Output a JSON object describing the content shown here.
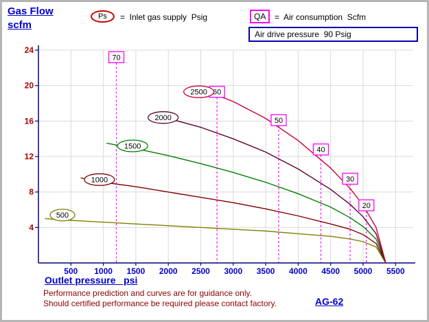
{
  "title": {
    "line1": "Gas Flow",
    "line2": "scfm"
  },
  "legend": {
    "ps_symbol": "Ps",
    "ps_text": "=  Inlet gas supply  Psig",
    "qa_symbol": "QA",
    "qa_text": "=  Air consumption  Scfm",
    "air_drive": "Air drive pressure  90 Psig"
  },
  "footer": {
    "xlabel": "Outlet pressure   psi",
    "note1": "Performance prediction and curves are for guidance only.",
    "note2": "Should certified performance be required please contact factory.",
    "model": "AG-62"
  },
  "chart_data": {
    "type": "line",
    "title": "Gas Flow scfm vs Outlet pressure psi",
    "xlabel": "Outlet pressure  psi",
    "ylabel": "Gas Flow  scfm",
    "xlim": [
      0,
      5750
    ],
    "ylim": [
      0,
      24
    ],
    "x_ticks": [
      500,
      1000,
      1500,
      2000,
      2500,
      3000,
      3500,
      4000,
      4500,
      5000,
      5500
    ],
    "y_ticks": [
      4,
      8,
      12,
      16,
      20,
      24
    ],
    "grid": true,
    "axis_color": "#000080",
    "grid_color": "#d9d9d9",
    "x_tick_color": "#0000cc",
    "y_tick_color": "#b00000",
    "qa_color": "#ff00ff",
    "series": [
      {
        "name": "500",
        "color": "#7f7f00",
        "label_pos": [
          370,
          5.4
        ],
        "points": [
          [
            100,
            5.0
          ],
          [
            500,
            4.8
          ],
          [
            1000,
            4.6
          ],
          [
            1500,
            4.4
          ],
          [
            2000,
            4.2
          ],
          [
            2500,
            4.0
          ],
          [
            3000,
            3.8
          ],
          [
            3500,
            3.6
          ],
          [
            4000,
            3.3
          ],
          [
            4500,
            3.0
          ],
          [
            4800,
            2.7
          ],
          [
            5000,
            2.4
          ],
          [
            5200,
            1.8
          ],
          [
            5350,
            0
          ]
        ]
      },
      {
        "name": "1000",
        "color": "#800000",
        "label_pos": [
          940,
          9.4
        ],
        "points": [
          [
            650,
            9.6
          ],
          [
            1000,
            9.1
          ],
          [
            1500,
            8.6
          ],
          [
            2000,
            8.0
          ],
          [
            2500,
            7.4
          ],
          [
            3000,
            6.8
          ],
          [
            3500,
            6.1
          ],
          [
            4000,
            5.3
          ],
          [
            4500,
            4.4
          ],
          [
            4800,
            3.8
          ],
          [
            5000,
            3.2
          ],
          [
            5200,
            2.2
          ],
          [
            5350,
            0
          ]
        ]
      },
      {
        "name": "1500",
        "color": "#007f00",
        "label_pos": [
          1450,
          13.2
        ],
        "points": [
          [
            1050,
            13.5
          ],
          [
            1500,
            12.9
          ],
          [
            2000,
            12.1
          ],
          [
            2500,
            11.2
          ],
          [
            3000,
            10.2
          ],
          [
            3500,
            9.1
          ],
          [
            4000,
            7.8
          ],
          [
            4500,
            6.3
          ],
          [
            4800,
            5.1
          ],
          [
            5000,
            4.1
          ],
          [
            5200,
            2.7
          ],
          [
            5350,
            0
          ]
        ]
      },
      {
        "name": "2000",
        "color": "#5a0030",
        "label_pos": [
          1920,
          16.4
        ],
        "points": [
          [
            1750,
            16.6
          ],
          [
            2000,
            16.3
          ],
          [
            2500,
            15.3
          ],
          [
            3000,
            14.0
          ],
          [
            3500,
            12.5
          ],
          [
            4000,
            10.6
          ],
          [
            4500,
            8.3
          ],
          [
            4800,
            6.6
          ],
          [
            5000,
            5.2
          ],
          [
            5200,
            3.3
          ],
          [
            5350,
            0
          ]
        ]
      },
      {
        "name": "2500",
        "color": "#cc0033",
        "label_pos": [
          2470,
          19.3
        ],
        "points": [
          [
            2400,
            19.4
          ],
          [
            2750,
            18.9
          ],
          [
            3000,
            18.2
          ],
          [
            3500,
            16.3
          ],
          [
            4000,
            13.8
          ],
          [
            4500,
            10.7
          ],
          [
            4800,
            8.4
          ],
          [
            5000,
            6.5
          ],
          [
            5200,
            4.0
          ],
          [
            5350,
            0
          ]
        ]
      }
    ],
    "qa_lines": [
      {
        "label": "70",
        "x": 1200,
        "label_scfm": 23.2
      },
      {
        "label": "60",
        "x": 2750,
        "label_scfm": 19.3
      },
      {
        "label": "50",
        "x": 3700,
        "label_scfm": 16.1
      },
      {
        "label": "40",
        "x": 4350,
        "label_scfm": 12.8
      },
      {
        "label": "30",
        "x": 4800,
        "label_scfm": 9.5
      },
      {
        "label": "20",
        "x": 5050,
        "label_scfm": 6.5
      }
    ]
  }
}
